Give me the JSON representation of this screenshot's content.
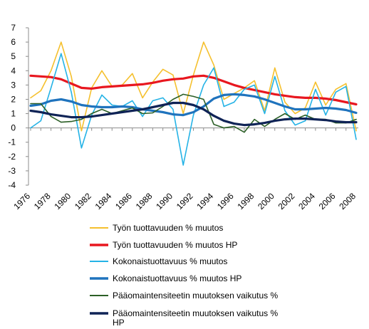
{
  "chart_data": {
    "type": "line",
    "x": [
      1976,
      1977,
      1978,
      1979,
      1980,
      1981,
      1982,
      1983,
      1984,
      1985,
      1986,
      1987,
      1988,
      1989,
      1990,
      1991,
      1992,
      1993,
      1994,
      1995,
      1996,
      1997,
      1998,
      1999,
      2000,
      2001,
      2002,
      2003,
      2004,
      2005,
      2006,
      2007,
      2008
    ],
    "x_tick_labels": [
      "1976",
      "1978",
      "1980",
      "1982",
      "1984",
      "1986",
      "1988",
      "1990",
      "1992",
      "1994",
      "1996",
      "1998",
      "2000",
      "2002",
      "2004",
      "2006",
      "2008"
    ],
    "ylim": [
      -4,
      7
    ],
    "y_ticks": [
      "-4",
      "-3",
      "-2",
      "-1",
      "0",
      "1",
      "2",
      "3",
      "4",
      "5",
      "6",
      "7"
    ],
    "grid": false,
    "legend_position": "bottom",
    "series": [
      {
        "name": "Työn tuottavuuden % muutos",
        "color": "#F5C02E",
        "width": 1.6,
        "values": [
          2.1,
          2.6,
          4.0,
          6.0,
          3.6,
          -0.2,
          2.8,
          4.0,
          2.9,
          3.0,
          3.8,
          2.1,
          3.2,
          4.1,
          3.7,
          1.0,
          3.7,
          6.0,
          4.4,
          2.0,
          2.4,
          2.8,
          3.3,
          1.2,
          4.2,
          1.8,
          1.0,
          1.4,
          3.2,
          1.6,
          2.7,
          3.1,
          -0.2
        ]
      },
      {
        "name": "Työn tuottavuuden % muutos HP",
        "color": "#E8171F",
        "width": 3.2,
        "values": [
          3.65,
          3.6,
          3.55,
          3.4,
          3.1,
          2.8,
          2.75,
          2.85,
          2.9,
          2.95,
          3.0,
          3.05,
          3.15,
          3.3,
          3.4,
          3.45,
          3.6,
          3.65,
          3.5,
          3.25,
          3.0,
          2.8,
          2.65,
          2.5,
          2.35,
          2.25,
          2.15,
          2.1,
          2.1,
          2.05,
          1.95,
          1.8,
          1.65
        ]
      },
      {
        "name": "Kokonaistuottavuus % muutos",
        "color": "#25B3E6",
        "width": 1.6,
        "values": [
          0.0,
          0.5,
          2.8,
          5.2,
          2.5,
          -1.4,
          0.9,
          2.3,
          1.6,
          1.5,
          1.9,
          0.8,
          1.9,
          2.1,
          1.3,
          -2.6,
          0.9,
          3.0,
          4.2,
          1.5,
          1.8,
          2.7,
          3.0,
          1.0,
          3.6,
          1.2,
          0.2,
          0.5,
          2.7,
          0.9,
          2.5,
          2.9,
          -0.8
        ]
      },
      {
        "name": "Kokonaistuottavuus % muutos HP",
        "color": "#1F73BD",
        "width": 3.2,
        "values": [
          1.55,
          1.65,
          1.9,
          2.0,
          1.85,
          1.6,
          1.5,
          1.45,
          1.45,
          1.5,
          1.45,
          1.3,
          1.2,
          1.1,
          0.95,
          0.9,
          1.1,
          1.5,
          2.05,
          2.3,
          2.35,
          2.3,
          2.2,
          2.0,
          1.75,
          1.5,
          1.3,
          1.3,
          1.35,
          1.4,
          1.35,
          1.25,
          1.05
        ]
      },
      {
        "name": "Pääomaintensiteetin muutoksen vaikutus %",
        "color": "#2B5F26",
        "width": 1.6,
        "values": [
          1.7,
          1.7,
          0.8,
          0.4,
          0.45,
          0.6,
          1.0,
          1.3,
          1.0,
          1.2,
          1.4,
          1.0,
          1.05,
          1.5,
          2.0,
          2.35,
          2.2,
          2.0,
          0.25,
          0.0,
          0.1,
          -0.3,
          0.6,
          0.1,
          0.6,
          1.0,
          0.6,
          0.9,
          0.6,
          0.6,
          0.35,
          0.35,
          0.6
        ]
      },
      {
        "name": "Pääomaintensiteetin muutoksen vaikutus % HP",
        "color": "#0F2356",
        "width": 3.2,
        "values": [
          1.2,
          1.1,
          0.95,
          0.85,
          0.75,
          0.75,
          0.8,
          0.9,
          1.0,
          1.1,
          1.2,
          1.3,
          1.45,
          1.6,
          1.75,
          1.75,
          1.6,
          1.3,
          0.85,
          0.5,
          0.3,
          0.2,
          0.25,
          0.35,
          0.5,
          0.6,
          0.65,
          0.65,
          0.6,
          0.55,
          0.45,
          0.4,
          0.4
        ]
      }
    ]
  }
}
